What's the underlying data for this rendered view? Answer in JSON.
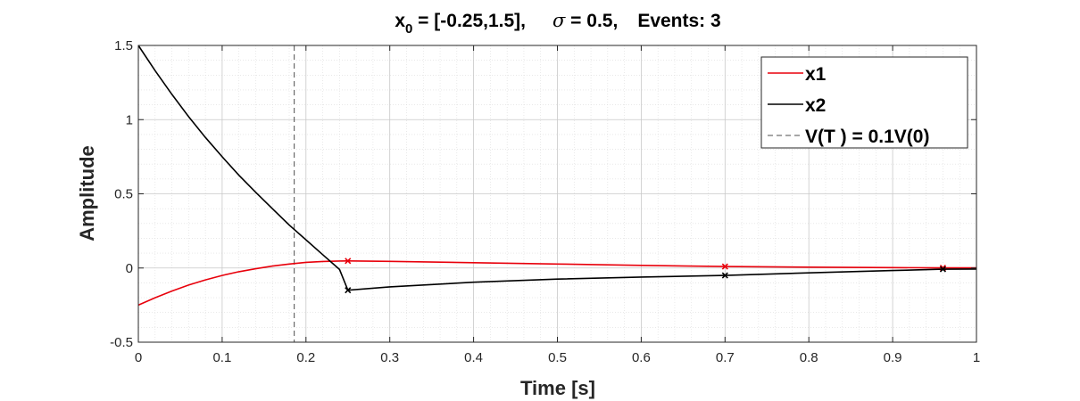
{
  "chart_data": {
    "type": "line",
    "title": {
      "x0_label": "x",
      "x0_subscript": "0",
      "x0_value": " = [-0.25,1.5],",
      "sigma_symbol": "σ",
      "sigma_value": " = 0.5,",
      "events": "Events: 3"
    },
    "xlabel": "Time [s]",
    "ylabel": "Amplitude",
    "xlim": [
      0,
      1
    ],
    "ylim": [
      -0.5,
      1.5
    ],
    "x_ticks": [
      0,
      0.1,
      0.2,
      0.3,
      0.4,
      0.5,
      0.6,
      0.7,
      0.8,
      0.9,
      1
    ],
    "x_tick_labels": [
      "0",
      "0.1",
      "0.2",
      "0.3",
      "0.4",
      "0.5",
      "0.6",
      "0.7",
      "0.8",
      "0.9",
      "1"
    ],
    "y_ticks": [
      -0.5,
      0,
      0.5,
      1,
      1.5
    ],
    "y_tick_labels": [
      "-0.5",
      "0",
      "0.5",
      "1",
      "1.5"
    ],
    "grid": "major and minor",
    "legend_position": "top-right",
    "series": [
      {
        "name": "x1",
        "color": "#e8000b",
        "x": [
          0,
          0.02,
          0.04,
          0.06,
          0.08,
          0.1,
          0.12,
          0.14,
          0.16,
          0.18,
          0.2,
          0.22,
          0.24,
          0.25,
          0.3,
          0.4,
          0.5,
          0.6,
          0.7,
          0.8,
          0.9,
          0.96,
          1.0
        ],
        "y": [
          -0.25,
          -0.2,
          -0.155,
          -0.115,
          -0.08,
          -0.05,
          -0.025,
          -0.005,
          0.013,
          0.027,
          0.038,
          0.044,
          0.047,
          0.048,
          0.045,
          0.036,
          0.027,
          0.018,
          0.01,
          0.006,
          0.003,
          0.001,
          0.001
        ],
        "event_markers": {
          "x": [
            0.25,
            0.7,
            0.96
          ],
          "y": [
            0.048,
            0.01,
            0.001
          ]
        }
      },
      {
        "name": "x2",
        "color": "#000000",
        "x": [
          0,
          0.02,
          0.04,
          0.06,
          0.08,
          0.1,
          0.12,
          0.14,
          0.16,
          0.18,
          0.2,
          0.22,
          0.24,
          0.25,
          0.3,
          0.4,
          0.5,
          0.6,
          0.7,
          0.8,
          0.9,
          0.96,
          1.0
        ],
        "y": [
          1.5,
          1.33,
          1.17,
          1.02,
          0.88,
          0.75,
          0.625,
          0.51,
          0.4,
          0.29,
          0.19,
          0.09,
          -0.01,
          -0.15,
          -0.127,
          -0.096,
          -0.075,
          -0.061,
          -0.05,
          -0.033,
          -0.017,
          -0.008,
          -0.007
        ],
        "event_markers": {
          "x": [
            0.25,
            0.7,
            0.96
          ],
          "y": [
            -0.15,
            -0.05,
            -0.008
          ]
        }
      }
    ],
    "threshold_line": {
      "name": "V(T ) = 0.1V(0)",
      "x": 0.186,
      "color": "#4d4d4d",
      "style": "dashed"
    }
  }
}
